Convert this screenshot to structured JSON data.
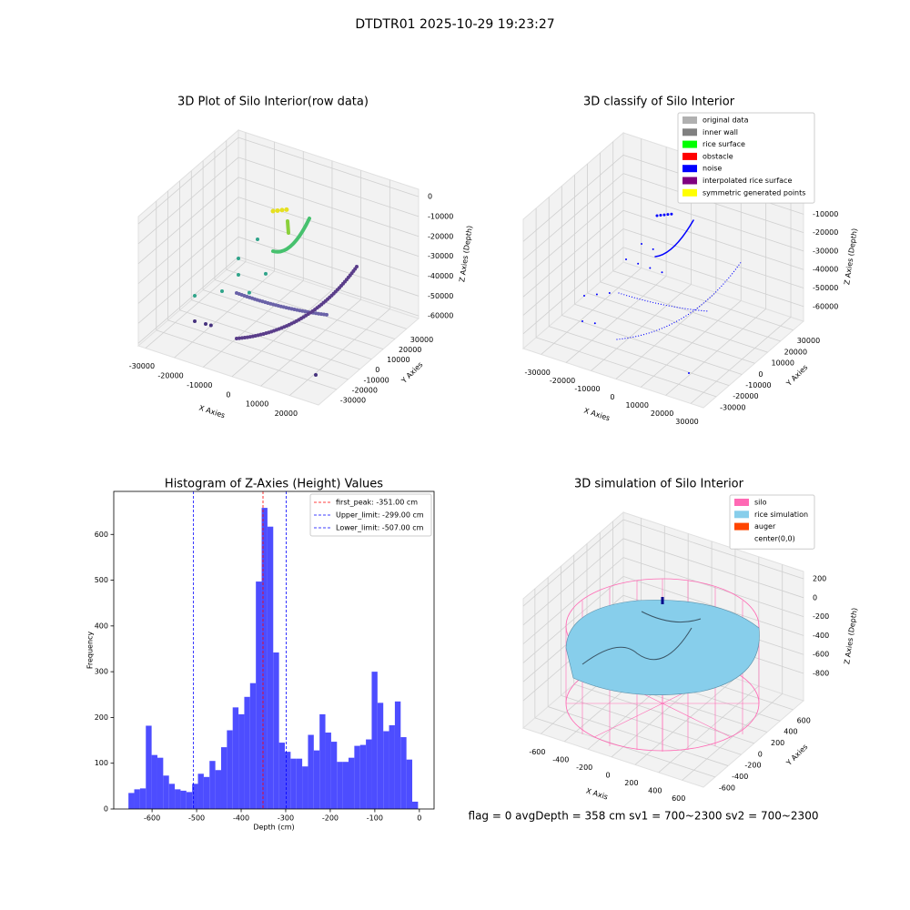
{
  "title": "DTDTR01 2025-10-29 19:23:27",
  "status_text": "flag = 0     avgDepth = 358 cm  sv1 = 700~2300  sv2 = 700~2300",
  "chart_data": [
    {
      "type": "scatter3d",
      "title": "3D Plot of Silo Interior(row data)",
      "xlabel": "X Axies",
      "ylabel": "Y Axies",
      "zlabel": "Z Axies (Depth)",
      "xlim": [
        -32500,
        30000
      ],
      "ylim": [
        -45400,
        40300
      ],
      "zlim": [
        -61300,
        3700
      ],
      "xticks": [
        -30000,
        -20000,
        -10000,
        0,
        10000,
        20000
      ],
      "yticks": [
        -30000,
        -20000,
        -10000,
        0,
        10000,
        20000,
        30000
      ],
      "zticks": [
        -60000,
        -50000,
        -40000,
        -30000,
        -20000,
        -10000,
        0
      ],
      "grid": true
    },
    {
      "type": "scatter3d",
      "title": "3D classify of Silo Interior",
      "xlabel": "X Axies",
      "ylabel": "Y Axies",
      "zlabel": "Z Axies (Depth)",
      "xlim": [
        -37200,
        35100
      ],
      "ylim": [
        -40000,
        38000
      ],
      "zlim": [
        -68000,
        2000
      ],
      "xticks": [
        -30000,
        -20000,
        -10000,
        0,
        10000,
        20000,
        30000
      ],
      "yticks": [
        -30000,
        -20000,
        -10000,
        0,
        10000,
        20000,
        30000
      ],
      "zticks": [
        -60000,
        -50000,
        -40000,
        -30000,
        -20000,
        -10000
      ],
      "grid": true,
      "legend": [
        {
          "label": "original data",
          "color": "#b0b0b0"
        },
        {
          "label": "inner wall",
          "color": "#808080"
        },
        {
          "label": "rice surface",
          "color": "#00ff00"
        },
        {
          "label": "obstacle",
          "color": "#ff0000"
        },
        {
          "label": "noise",
          "color": "#0000ff"
        },
        {
          "label": "interpolated rice surface",
          "color": "#800080"
        },
        {
          "label": "symmetric generated points",
          "color": "#ffff00"
        }
      ]
    },
    {
      "type": "histogram",
      "title": "Histogram of Z-Axies (Height) Values",
      "xlabel": "Depth (cm)",
      "ylabel": "Frequency",
      "color": "#4d4dff",
      "bins": [
        -653,
        -640,
        -627,
        -614,
        -601,
        -588,
        -575,
        -562,
        -549,
        -536,
        -523,
        -510,
        -497,
        -484,
        -471,
        -458,
        -445,
        -432,
        -419,
        -406,
        -393,
        -380,
        -367,
        -354,
        -341,
        -328,
        -315,
        -302,
        -289,
        -276,
        -263,
        -250,
        -237,
        -224,
        -211,
        -198,
        -185,
        -172,
        -159,
        -146,
        -133,
        -120,
        -107,
        -94,
        -81,
        -68,
        -55,
        -42,
        -29,
        -16,
        -3
      ],
      "values": [
        35,
        43,
        45,
        182,
        118,
        112,
        73,
        55,
        43,
        40,
        37,
        55,
        77,
        70,
        105,
        85,
        135,
        172,
        222,
        207,
        245,
        275,
        497,
        658,
        617,
        342,
        145,
        125,
        110,
        110,
        93,
        162,
        128,
        207,
        167,
        147,
        103,
        103,
        112,
        138,
        140,
        152,
        300,
        232,
        170,
        183,
        235,
        157,
        108,
        16
      ],
      "xlim": [
        -686,
        33
      ],
      "ylim": [
        0,
        694
      ],
      "xticks": [
        -600,
        -500,
        -400,
        -300,
        -200,
        -100,
        0
      ],
      "yticks": [
        0,
        100,
        200,
        300,
        400,
        500,
        600
      ],
      "vlines": [
        {
          "label": "first_peak: -351.00 cm",
          "value": -351,
          "color": "#ff0000"
        },
        {
          "label": "Upper_limit: -299.00 cm",
          "value": -299,
          "color": "#0000ff"
        },
        {
          "label": "Lower_limit: -507.00 cm",
          "value": -507,
          "color": "#0000ff"
        }
      ],
      "legend_position": "upper right"
    },
    {
      "type": "surface3d",
      "title": "3D simulation of Silo Interior",
      "xlabel": "X Axis",
      "ylabel": "Y Axies",
      "zlabel": "Z Axies (Depth)",
      "xlim": [
        -750,
        780
      ],
      "ylim": [
        -780,
        760
      ],
      "zlim": [
        -1088,
        277
      ],
      "xticks": [
        -600,
        -400,
        -200,
        0,
        200,
        400,
        600
      ],
      "yticks": [
        -600,
        -400,
        -200,
        0,
        200,
        400,
        600
      ],
      "zticks": [
        -800,
        -600,
        -400,
        -200,
        0,
        200
      ],
      "grid": true,
      "legend": [
        {
          "label": "silo",
          "color": "#ff69b4"
        },
        {
          "label": "rice simulation",
          "color": "#87ceeb"
        },
        {
          "label": "auger",
          "color": "#ff4500"
        },
        {
          "label": "center(0,0)",
          "color": "#ffffff"
        }
      ]
    }
  ]
}
